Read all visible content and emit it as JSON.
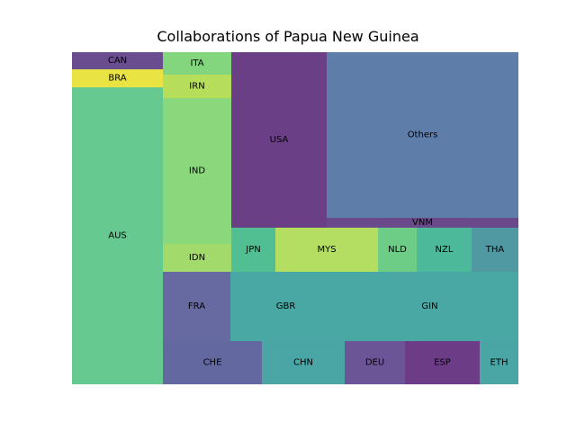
{
  "chart_data": {
    "type": "treemap",
    "title": "Collaborations of Papua New Guinea",
    "cells": [
      {
        "label": "CAN",
        "color": "#6a4d8f"
      },
      {
        "label": "BRA",
        "color": "#e9e443"
      },
      {
        "label": "AUS",
        "color": "#66c98f"
      },
      {
        "label": "ITA",
        "color": "#84d67e"
      },
      {
        "label": "IRN",
        "color": "#b7de5a"
      },
      {
        "label": "IND",
        "color": "#89d87b"
      },
      {
        "label": "IDN",
        "color": "#a2da6b"
      },
      {
        "label": "USA",
        "color": "#6b3f85"
      },
      {
        "label": "Others",
        "color": "#5f7da9"
      },
      {
        "label": "VNM",
        "color": "#6b4a8c"
      },
      {
        "label": "JPN",
        "color": "#52bf92"
      },
      {
        "label": "MYS",
        "color": "#b3de62"
      },
      {
        "label": "NLD",
        "color": "#6dcc86"
      },
      {
        "label": "NZL",
        "color": "#4cb99b"
      },
      {
        "label": "THA",
        "color": "#5199a2"
      },
      {
        "label": "FRA",
        "color": "#666aa0"
      },
      {
        "label": "GBR",
        "color": "#4aa8a4"
      },
      {
        "label": "GIN",
        "color": "#4aa8a4"
      },
      {
        "label": "CHE",
        "color": "#6468a1"
      },
      {
        "label": "CHN",
        "color": "#4aa6a5"
      },
      {
        "label": "DEU",
        "color": "#6c5597"
      },
      {
        "label": "ESP",
        "color": "#6c3c87"
      },
      {
        "label": "ETH",
        "color": "#4aa6a5"
      }
    ]
  }
}
